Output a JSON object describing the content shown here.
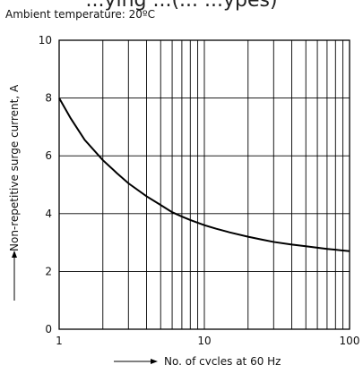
{
  "header": {
    "title": "...ying ...(... ...ypes)",
    "subtitle": "Ambient temperature: 20ºC"
  },
  "chart_data": {
    "type": "line",
    "title": "",
    "xlabel": "No. of cycles at 60 Hz",
    "ylabel": "Non-repetitive surge current, A",
    "x_scale": "log",
    "xlim": [
      1,
      100
    ],
    "ylim": [
      0,
      10
    ],
    "x_tick_labels": [
      "1",
      "10",
      "100"
    ],
    "y_tick_labels": [
      "0",
      "2",
      "4",
      "6",
      "8",
      "10"
    ],
    "grid": true,
    "series": [
      {
        "x": [
          1,
          1.2,
          1.5,
          2,
          2.5,
          3,
          4,
          5,
          6,
          7,
          8,
          10,
          12,
          15,
          20,
          25,
          30,
          40,
          50,
          60,
          70,
          80,
          100
        ],
        "y": [
          8.0,
          7.3,
          6.55,
          5.85,
          5.4,
          5.05,
          4.6,
          4.3,
          4.05,
          3.9,
          3.78,
          3.6,
          3.48,
          3.35,
          3.2,
          3.1,
          3.02,
          2.93,
          2.87,
          2.82,
          2.78,
          2.75,
          2.7
        ]
      }
    ]
  }
}
